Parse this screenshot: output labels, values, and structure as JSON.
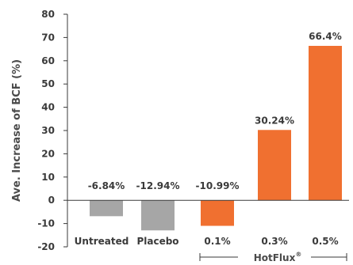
{
  "chart_data": {
    "type": "bar",
    "ylabel": "Ave. Increase of BCF (%)",
    "ylim": [
      -20,
      80
    ],
    "yticks": [
      -20,
      -10,
      0,
      10,
      20,
      30,
      40,
      50,
      60,
      70,
      80
    ],
    "categories": [
      "Untreated",
      "Placebo",
      "0.1%",
      "0.3%",
      "0.5%"
    ],
    "values": [
      -6.84,
      -12.94,
      -10.99,
      30.24,
      66.4
    ],
    "data_labels": [
      "-6.84%",
      "-12.94%",
      "-10.99%",
      "30.24%",
      "66.4%"
    ],
    "bar_colors": [
      "#a6a6a6",
      "#a6a6a6",
      "#f07030",
      "#f07030",
      "#f07030"
    ],
    "group_label": {
      "text": "HotFlux",
      "superscript": "®",
      "spans_categories": [
        "0.1%",
        "0.3%",
        "0.5%"
      ]
    },
    "grid": false
  },
  "colors": {
    "axis": "#3a3a3a",
    "gray_bar": "#a6a6a6",
    "orange_bar": "#f07030"
  }
}
